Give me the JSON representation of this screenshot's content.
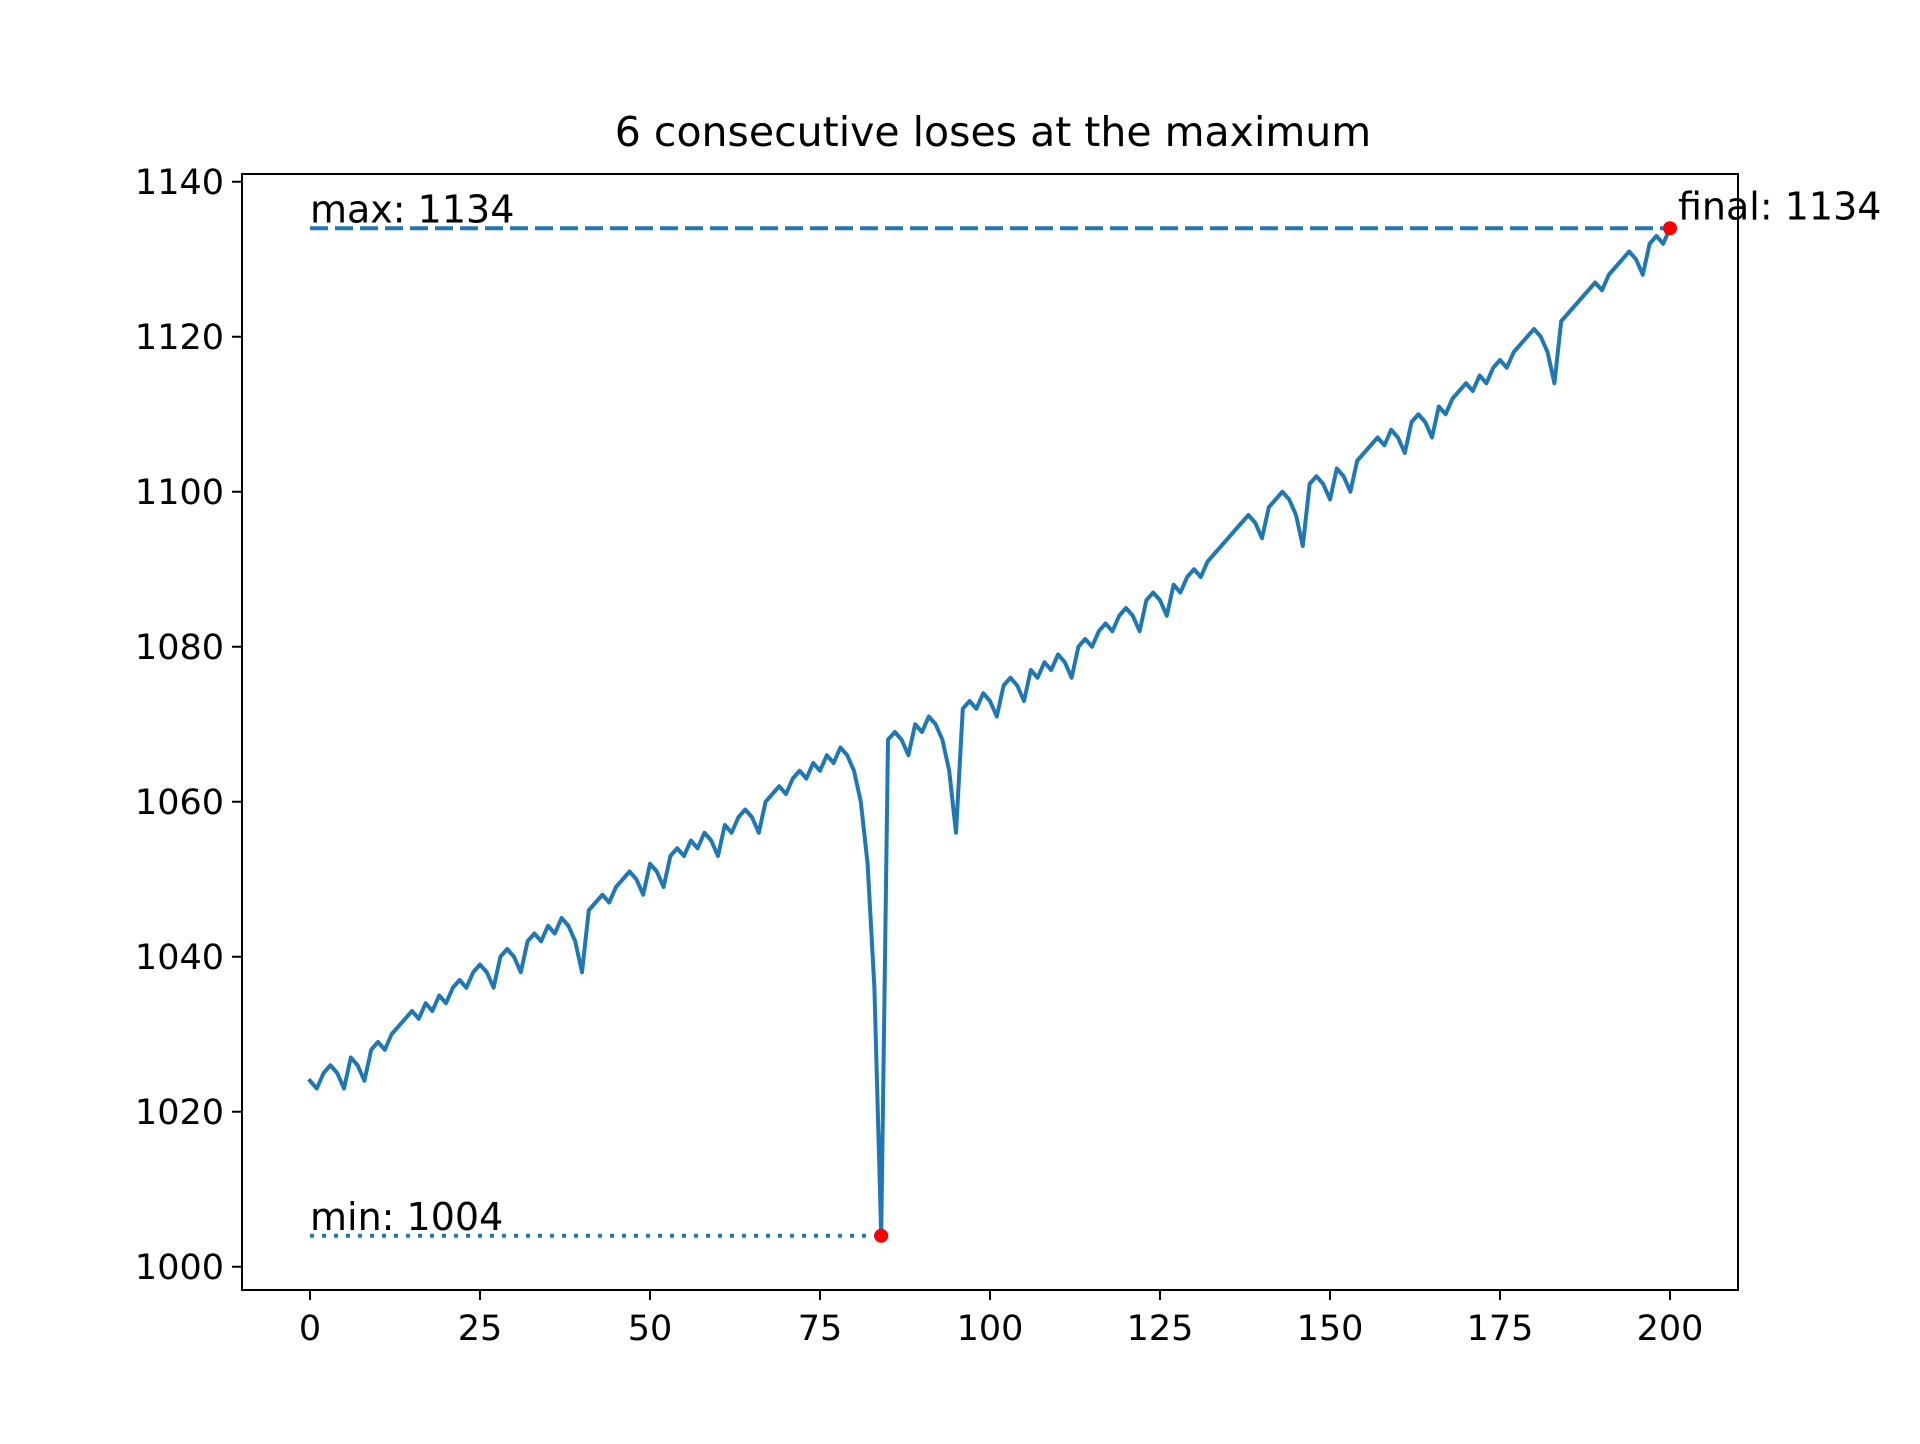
{
  "chart_data": {
    "type": "line",
    "title": "6 consecutive loses at the maximum",
    "xlabel": "",
    "ylabel": "",
    "xlim": [
      -10,
      210
    ],
    "ylim": [
      997,
      1141
    ],
    "xticks": [
      0,
      25,
      50,
      75,
      100,
      125,
      150,
      175,
      200
    ],
    "yticks": [
      1000,
      1020,
      1040,
      1060,
      1080,
      1100,
      1120,
      1140
    ],
    "grid": false,
    "legend": "none",
    "series": [
      {
        "color": "#1f77b4",
        "style": "solid",
        "x": [
          0,
          1,
          2,
          3,
          4,
          5,
          6,
          7,
          8,
          9,
          10,
          11,
          12,
          13,
          14,
          15,
          16,
          17,
          18,
          19,
          20,
          21,
          22,
          23,
          24,
          25,
          26,
          27,
          28,
          29,
          30,
          31,
          32,
          33,
          34,
          35,
          36,
          37,
          38,
          39,
          40,
          41,
          42,
          43,
          44,
          45,
          46,
          47,
          48,
          49,
          50,
          51,
          52,
          53,
          54,
          55,
          56,
          57,
          58,
          59,
          60,
          61,
          62,
          63,
          64,
          65,
          66,
          67,
          68,
          69,
          70,
          71,
          72,
          73,
          74,
          75,
          76,
          77,
          78,
          79,
          80,
          81,
          82,
          83,
          84,
          85,
          86,
          87,
          88,
          89,
          90,
          91,
          92,
          93,
          94,
          95,
          96,
          97,
          98,
          99,
          100,
          101,
          102,
          103,
          104,
          105,
          106,
          107,
          108,
          109,
          110,
          111,
          112,
          113,
          114,
          115,
          116,
          117,
          118,
          119,
          120,
          121,
          122,
          123,
          124,
          125,
          126,
          127,
          128,
          129,
          130,
          131,
          132,
          133,
          134,
          135,
          136,
          137,
          138,
          139,
          140,
          141,
          142,
          143,
          144,
          145,
          146,
          147,
          148,
          149,
          150,
          151,
          152,
          153,
          154,
          155,
          156,
          157,
          158,
          159,
          160,
          161,
          162,
          163,
          164,
          165,
          166,
          167,
          168,
          169,
          170,
          171,
          172,
          173,
          174,
          175,
          176,
          177,
          178,
          179,
          180,
          181,
          182,
          183,
          184,
          185,
          186,
          187,
          188,
          189,
          190,
          191,
          192,
          193,
          194,
          195,
          196,
          197,
          198,
          199,
          200
        ],
        "y": [
          1024,
          1023,
          1025,
          1026,
          1025,
          1023,
          1027,
          1026,
          1024,
          1028,
          1029,
          1028,
          1030,
          1031,
          1032,
          1033,
          1032,
          1034,
          1033,
          1035,
          1034,
          1036,
          1037,
          1036,
          1038,
          1039,
          1038,
          1036,
          1040,
          1041,
          1040,
          1038,
          1042,
          1043,
          1042,
          1044,
          1043,
          1045,
          1044,
          1042,
          1038,
          1046,
          1047,
          1048,
          1047,
          1049,
          1050,
          1051,
          1050,
          1048,
          1052,
          1051,
          1049,
          1053,
          1054,
          1053,
          1055,
          1054,
          1056,
          1055,
          1053,
          1057,
          1056,
          1058,
          1059,
          1058,
          1056,
          1060,
          1061,
          1062,
          1061,
          1063,
          1064,
          1063,
          1065,
          1064,
          1066,
          1065,
          1067,
          1066,
          1064,
          1060,
          1052,
          1036,
          1004,
          1068,
          1069,
          1068,
          1066,
          1070,
          1069,
          1071,
          1070,
          1068,
          1064,
          1056,
          1072,
          1073,
          1072,
          1074,
          1073,
          1071,
          1075,
          1076,
          1075,
          1073,
          1077,
          1076,
          1078,
          1077,
          1079,
          1078,
          1076,
          1080,
          1081,
          1080,
          1082,
          1083,
          1082,
          1084,
          1085,
          1084,
          1082,
          1086,
          1087,
          1086,
          1084,
          1088,
          1087,
          1089,
          1090,
          1089,
          1091,
          1092,
          1093,
          1094,
          1095,
          1096,
          1097,
          1096,
          1094,
          1098,
          1099,
          1100,
          1099,
          1097,
          1093,
          1101,
          1102,
          1101,
          1099,
          1103,
          1102,
          1100,
          1104,
          1105,
          1106,
          1107,
          1106,
          1108,
          1107,
          1105,
          1109,
          1110,
          1109,
          1107,
          1111,
          1110,
          1112,
          1113,
          1114,
          1113,
          1115,
          1114,
          1116,
          1117,
          1116,
          1118,
          1119,
          1120,
          1121,
          1120,
          1118,
          1114,
          1122,
          1123,
          1124,
          1125,
          1126,
          1127,
          1126,
          1128,
          1129,
          1130,
          1131,
          1130,
          1128,
          1132,
          1133,
          1132,
          1134
        ]
      }
    ],
    "reference_lines": [
      {
        "kind": "max",
        "y": 1134,
        "x_range": [
          0,
          200
        ],
        "style": "dashed",
        "color": "#1f77b4",
        "label": "max: 1134"
      },
      {
        "kind": "min",
        "y": 1004,
        "x_range": [
          0,
          84
        ],
        "style": "dotted",
        "color": "#1f77b4",
        "label": "min: 1004"
      }
    ],
    "markers": [
      {
        "kind": "min",
        "x": 84,
        "y": 1004,
        "color": "#ff0000"
      },
      {
        "kind": "final",
        "x": 200,
        "y": 1134,
        "color": "#ff0000",
        "label": "final: 1134"
      }
    ]
  }
}
